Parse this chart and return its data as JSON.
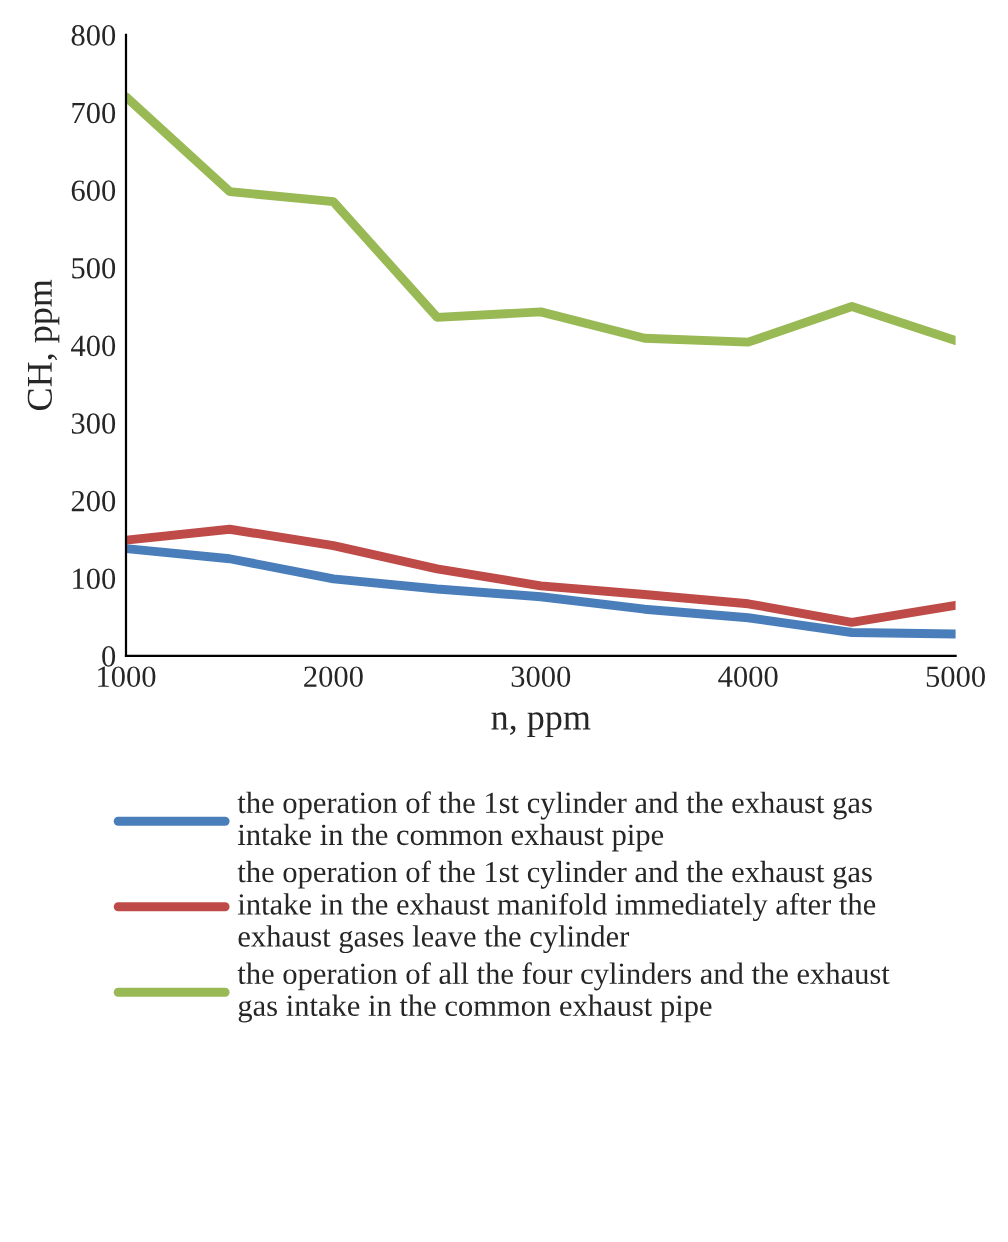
{
  "chart_data": {
    "type": "line",
    "xlabel": "n, ppm",
    "ylabel": "CH, ppm",
    "x": [
      1000,
      1500,
      2000,
      2500,
      3000,
      3500,
      4000,
      4500,
      5000
    ],
    "series": [
      {
        "name": "the operation of the 1st cylinder and the exhaust gas intake in the common exhaust pipe",
        "color": "#4a7ebb",
        "values": [
          138,
          125,
          99,
          86,
          76,
          60,
          49,
          30,
          28
        ]
      },
      {
        "name": "the operation of the 1st cylinder and the exhaust gas intake in the exhaust manifold immediately after the exhaust gases leave the cylinder",
        "color": "#be4b48",
        "values": [
          149,
          163,
          142,
          112,
          90,
          79,
          67,
          43,
          65
        ]
      },
      {
        "name": "the operation of all the four cylinders and the exhaust gas intake in the common exhaust pipe",
        "color": "#98b954",
        "values": [
          720,
          598,
          585,
          436,
          443,
          409,
          404,
          450,
          406
        ]
      }
    ],
    "xlim": [
      1000,
      5000
    ],
    "xticks": [
      1000,
      2000,
      3000,
      4000,
      5000
    ],
    "ylim": [
      0,
      800
    ],
    "yticks": [
      0,
      100,
      200,
      300,
      400,
      500,
      600,
      700,
      800
    ],
    "grid": false,
    "legend": "bottom",
    "marker": "none",
    "line_style": "solid"
  }
}
